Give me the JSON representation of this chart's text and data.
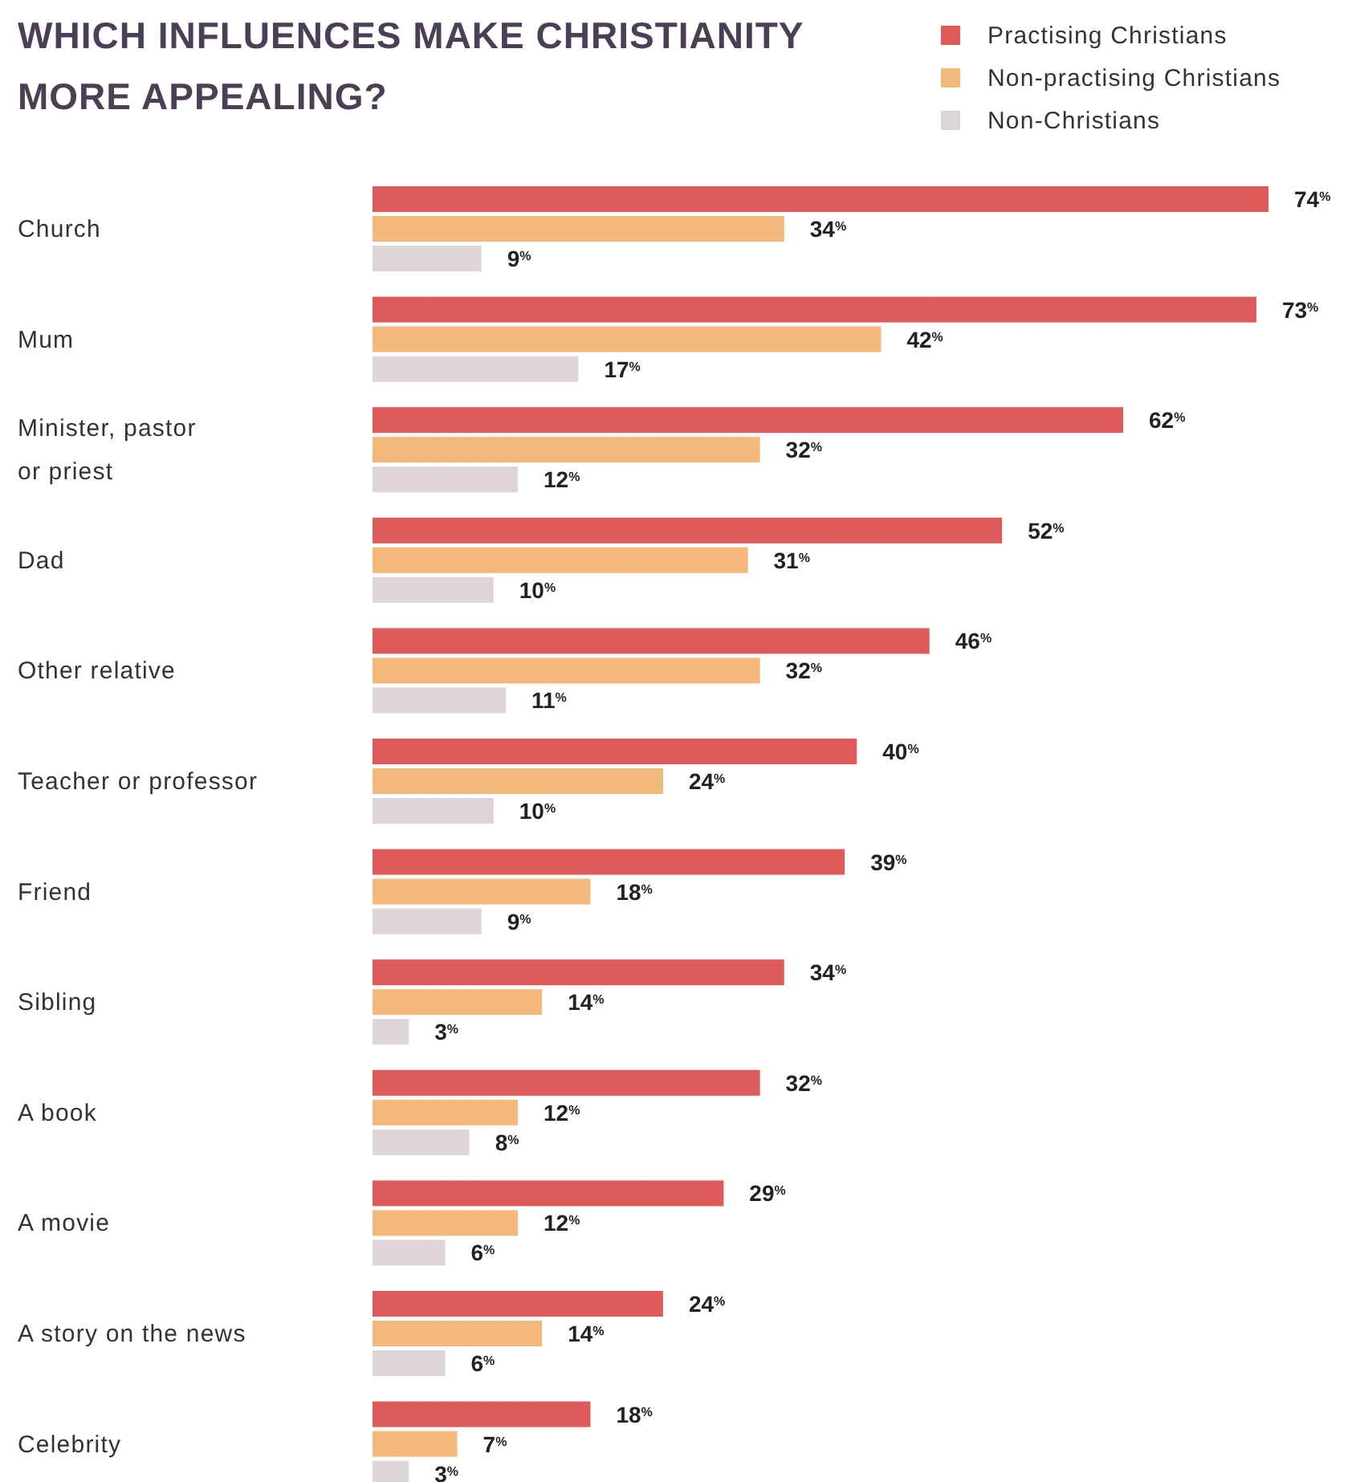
{
  "chart_data": {
    "type": "bar",
    "orientation": "horizontal",
    "title": "WHICH INFLUENCES MAKE CHRISTIANITY MORE APPEALING?",
    "legend": "top right",
    "categories": [
      "Church",
      "Mum",
      "Minister, pastor or priest",
      "Dad",
      "Other relative",
      "Teacher or professor",
      "Friend",
      "Sibling",
      "A book",
      "A movie",
      "A story on the news",
      "Celebrity"
    ],
    "series": [
      {
        "name": "Practising Christians",
        "color": "#de5a5b",
        "values": [
          74,
          73,
          62,
          52,
          46,
          40,
          39,
          34,
          32,
          29,
          24,
          18
        ],
        "value_labels": [
          "74$^{%}$",
          "73$^{%}$",
          "62$^{%}$",
          "52$^{%}$",
          "46$^{%}$",
          "40$^{%}$",
          "39$^{%}$",
          "34$^{%}$",
          "32$^{%}$",
          "29$^{%}$",
          "24$^{%}$",
          "18$^{%}$"
        ]
      },
      {
        "name": "Non-practising Christians",
        "color": "#f3b97b",
        "values": [
          34,
          42,
          32,
          31,
          32,
          24,
          18,
          14,
          12,
          12,
          14,
          7
        ],
        "value_labels": [
          "34$^{%}$",
          "42$^{%}$",
          "32$^{%}$",
          "31$^{%}$",
          "32$^{%}$",
          "24$^{%}$",
          "18$^{%}$",
          "14$^{%}$",
          "12$^{%}$",
          "12$^{%}$",
          "14$^{%}$",
          "7$^{%}$"
        ]
      },
      {
        "name": "Non-Christians",
        "color": "#ddd5d8",
        "values": [
          9,
          17,
          12,
          10,
          11,
          10,
          9,
          3,
          8,
          6,
          6,
          3
        ],
        "value_labels": [
          "9$^{%}$",
          "17$^{%}$",
          "12$^{%}$",
          "10$^{%}$",
          "11$^{%}$",
          "10$^{%}$",
          "9$^{%}$",
          "3$^{%}$",
          "8$^{%}$",
          "6$^{%}$",
          "6$^{%}$",
          "3$^{%}$"
        ]
      }
    ]
  }
}
